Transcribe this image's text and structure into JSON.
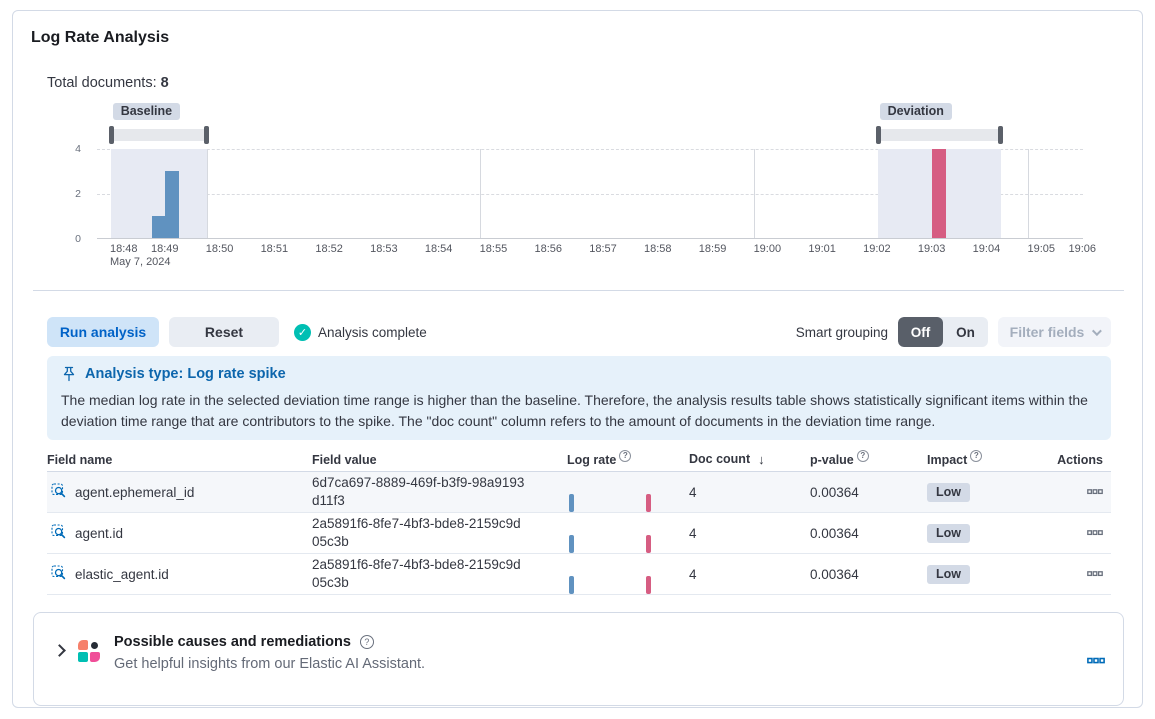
{
  "header": {
    "title": "Log Rate Analysis",
    "total_documents_label": "Total documents:",
    "total_documents_value": "8"
  },
  "chart_data": {
    "type": "bar",
    "title": "Log rate histogram with baseline and deviation selections",
    "x_ticks": [
      "18:48",
      "18:49",
      "18:50",
      "18:51",
      "18:52",
      "18:53",
      "18:54",
      "18:55",
      "18:56",
      "18:57",
      "18:58",
      "18:59",
      "19:00",
      "19:01",
      "19:02",
      "19:03",
      "19:04",
      "19:05",
      "19:06"
    ],
    "x_date_label": "May 7, 2024",
    "x_minutes_span": 18,
    "y_ticks": [
      0,
      2,
      4
    ],
    "ylim": [
      0,
      4
    ],
    "bar_width_min": 0.25,
    "major_gridlines_min": [
      2,
      7,
      12,
      17
    ],
    "series": [
      {
        "name": "baseline doc count",
        "color": "#6092c0",
        "points": [
          {
            "start_min": 1.0,
            "value": 1
          },
          {
            "start_min": 1.25,
            "value": 3
          }
        ]
      },
      {
        "name": "deviation doc count",
        "color": "#d65d82",
        "points": [
          {
            "start_min": 15.25,
            "value": 4
          }
        ]
      }
    ],
    "regions": [
      {
        "name": "Baseline",
        "start_min": 0.25,
        "end_min": 2.0
      },
      {
        "name": "Deviation",
        "start_min": 14.25,
        "end_min": 16.5
      }
    ],
    "legend_position": "none",
    "grid": true
  },
  "toolbar": {
    "run_analysis": "Run analysis",
    "reset": "Reset",
    "status": "Analysis complete",
    "smart_grouping_label": "Smart grouping",
    "off": "Off",
    "on": "On",
    "filter_fields": "Filter fields"
  },
  "callout": {
    "title": "Analysis type: Log rate spike",
    "body": "The median log rate in the selected deviation time range is higher than the baseline. Therefore, the analysis results table shows statistically significant items within the deviation time range that are contributors to the spike. The \"doc count\" column refers to the amount of documents in the deviation time range."
  },
  "table": {
    "headers": {
      "field_name": "Field name",
      "field_value": "Field value",
      "log_rate": "Log rate",
      "doc_count": "Doc count",
      "p_value": "p-value",
      "impact": "Impact",
      "actions": "Actions"
    },
    "rows": [
      {
        "field_name": "agent.ephemeral_id",
        "field_value": "6d7ca697-8889-469f-b3f9-98a9193d11f3",
        "doc_count": "4",
        "p_value": "0.00364",
        "impact": "Low"
      },
      {
        "field_name": "agent.id",
        "field_value": "2a5891f6-8fe7-4bf3-bde8-2159c9d05c3b",
        "doc_count": "4",
        "p_value": "0.00364",
        "impact": "Low"
      },
      {
        "field_name": "elastic_agent.id",
        "field_value": "2a5891f6-8fe7-4bf3-bde8-2159c9d05c3b",
        "doc_count": "4",
        "p_value": "0.00364",
        "impact": "Low"
      }
    ]
  },
  "ai_panel": {
    "title": "Possible causes and remediations",
    "subtitle": "Get helpful insights from our Elastic AI Assistant."
  },
  "icons": {
    "check": "✓",
    "question": "?",
    "sort_desc": "↓"
  },
  "colors": {
    "baseline_bar": "#6092c0",
    "deviation_bar": "#d65d82",
    "accent_blue": "#0062c7",
    "success_teal": "#00bfb3",
    "badge_gray": "#d3dae6",
    "callout_bg": "#e6f1fa"
  }
}
